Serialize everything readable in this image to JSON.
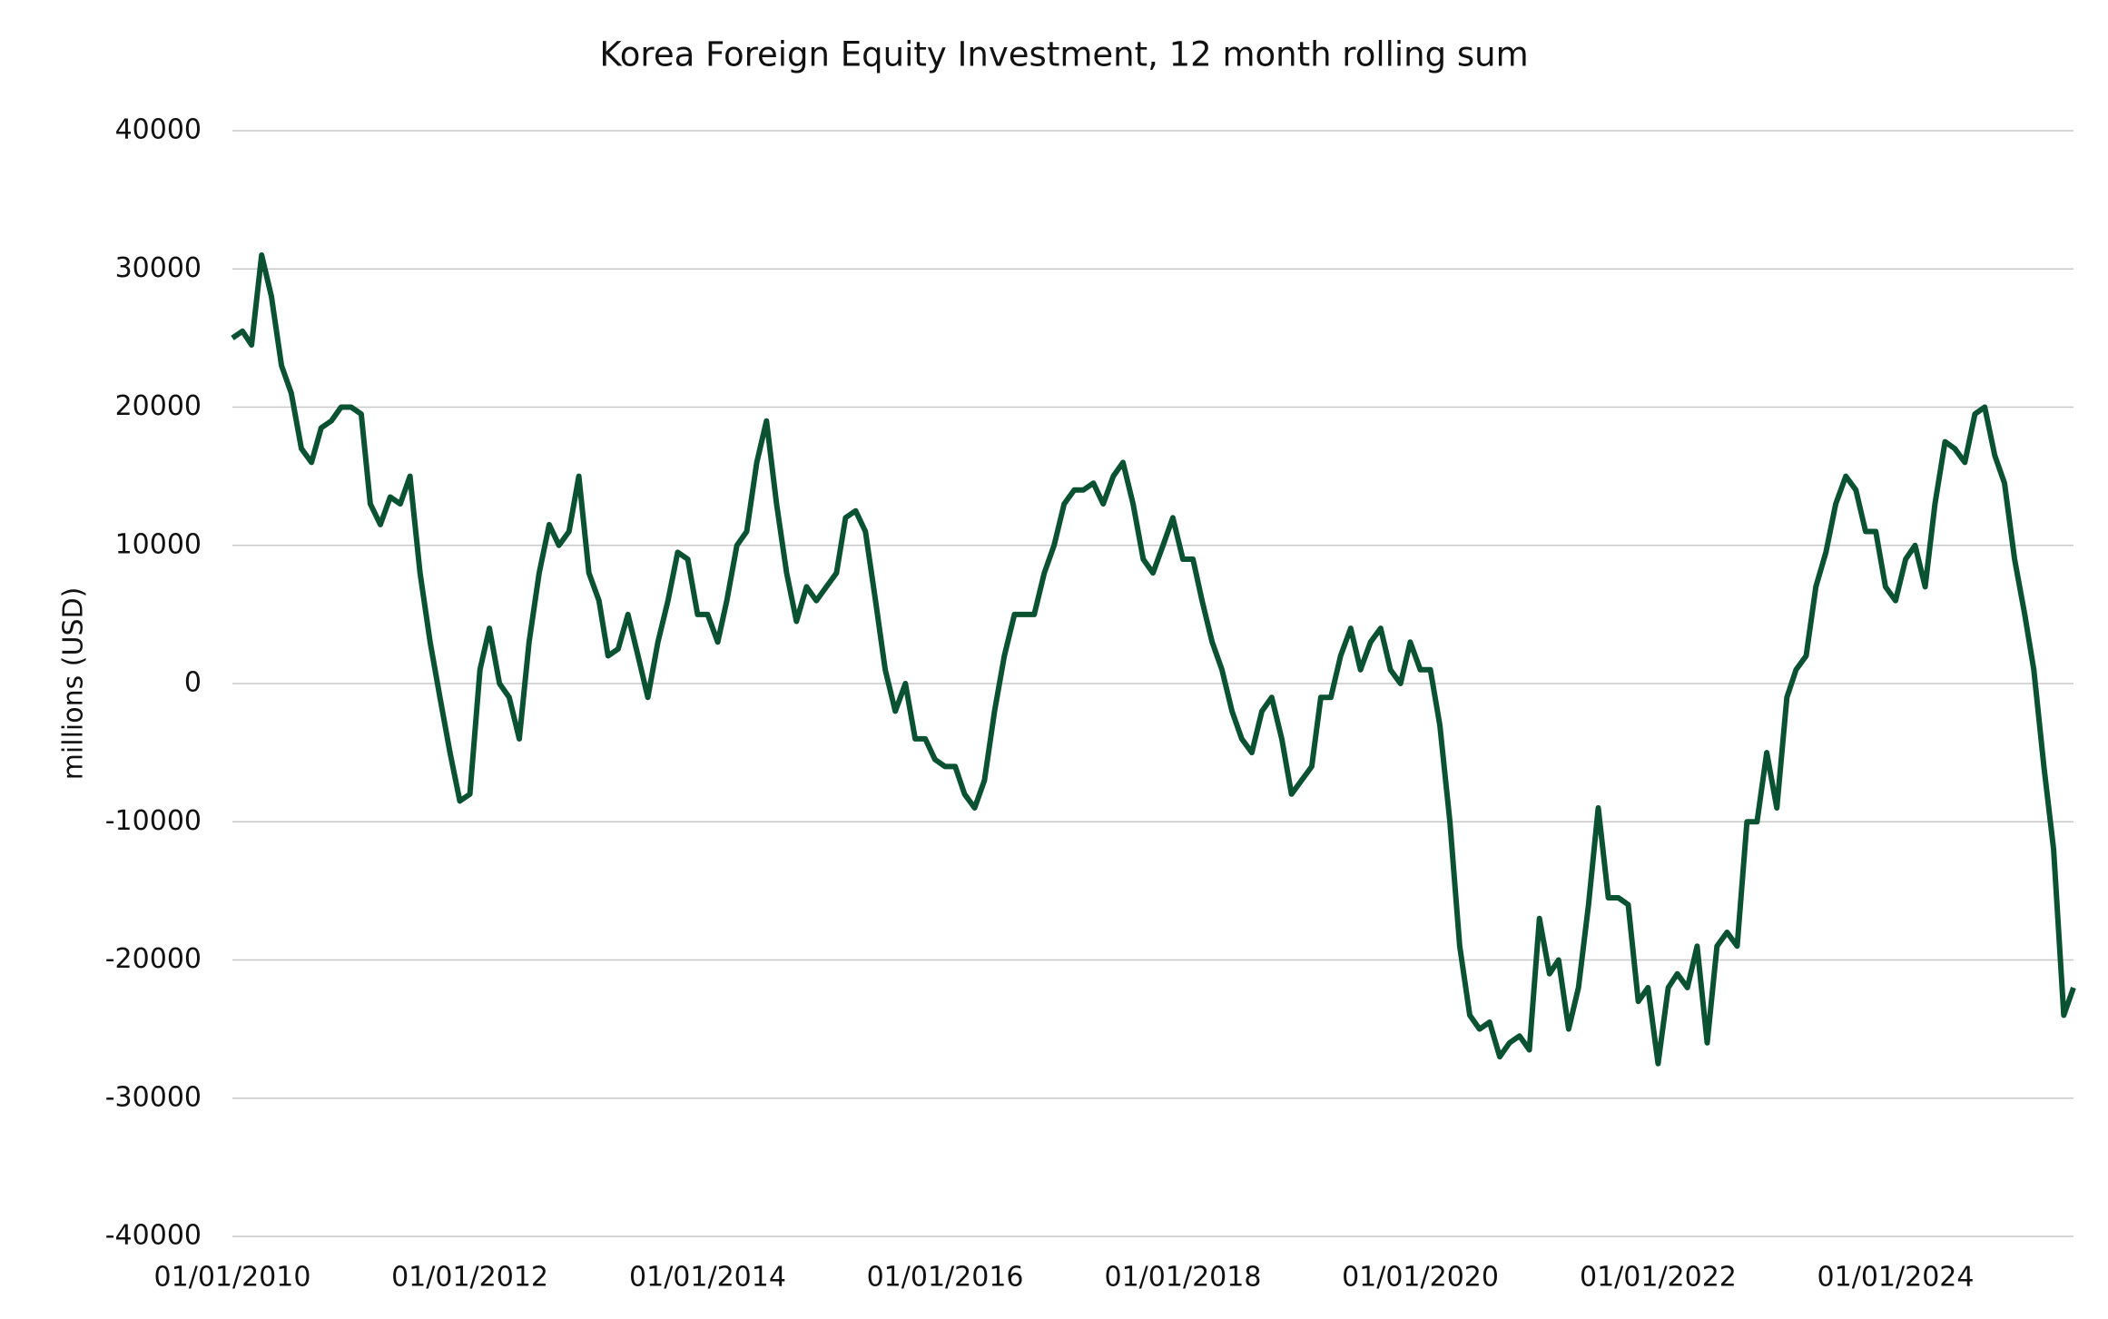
{
  "chart_data": {
    "type": "line",
    "title": "Korea Foreign Equity Investment, 12 month rolling sum",
    "y_label": "millions (USD)",
    "x": [
      "01/01/2010",
      "01/02/2010",
      "01/03/2010",
      "01/04/2010",
      "01/05/2010",
      "01/06/2010",
      "01/07/2010",
      "01/08/2010",
      "01/09/2010",
      "01/10/2010",
      "01/11/2010",
      "01/12/2010",
      "01/01/2011",
      "01/02/2011",
      "01/03/2011",
      "01/04/2011",
      "01/05/2011",
      "01/06/2011",
      "01/07/2011",
      "01/08/2011",
      "01/09/2011",
      "01/10/2011",
      "01/11/2011",
      "01/12/2011",
      "01/01/2012",
      "01/02/2012",
      "01/03/2012",
      "01/04/2012",
      "01/05/2012",
      "01/06/2012",
      "01/07/2012",
      "01/08/2012",
      "01/09/2012",
      "01/10/2012",
      "01/11/2012",
      "01/12/2012",
      "01/01/2013",
      "01/02/2013",
      "01/03/2013",
      "01/04/2013",
      "01/05/2013",
      "01/06/2013",
      "01/07/2013",
      "01/08/2013",
      "01/09/2013",
      "01/10/2013",
      "01/11/2013",
      "01/12/2013",
      "01/01/2014",
      "01/02/2014",
      "01/03/2014",
      "01/04/2014",
      "01/05/2014",
      "01/06/2014",
      "01/07/2014",
      "01/08/2014",
      "01/09/2014",
      "01/10/2014",
      "01/11/2014",
      "01/12/2014",
      "01/01/2015",
      "01/02/2015",
      "01/03/2015",
      "01/04/2015",
      "01/05/2015",
      "01/06/2015",
      "01/07/2015",
      "01/08/2015",
      "01/09/2015",
      "01/10/2015",
      "01/11/2015",
      "01/12/2015",
      "01/01/2016",
      "01/02/2016",
      "01/03/2016",
      "01/04/2016",
      "01/05/2016",
      "01/06/2016",
      "01/07/2016",
      "01/08/2016",
      "01/09/2016",
      "01/10/2016",
      "01/11/2016",
      "01/12/2016",
      "01/01/2017",
      "01/02/2017",
      "01/03/2017",
      "01/04/2017",
      "01/05/2017",
      "01/06/2017",
      "01/07/2017",
      "01/08/2017",
      "01/09/2017",
      "01/10/2017",
      "01/11/2017",
      "01/12/2017",
      "01/01/2018",
      "01/02/2018",
      "01/03/2018",
      "01/04/2018",
      "01/05/2018",
      "01/06/2018",
      "01/07/2018",
      "01/08/2018",
      "01/09/2018",
      "01/10/2018",
      "01/11/2018",
      "01/12/2018",
      "01/01/2019",
      "01/02/2019",
      "01/03/2019",
      "01/04/2019",
      "01/05/2019",
      "01/06/2019",
      "01/07/2019",
      "01/08/2019",
      "01/09/2019",
      "01/10/2019",
      "01/11/2019",
      "01/12/2019",
      "01/01/2020",
      "01/02/2020",
      "01/03/2020",
      "01/04/2020",
      "01/05/2020",
      "01/06/2020",
      "01/07/2020",
      "01/08/2020",
      "01/09/2020",
      "01/10/2020",
      "01/11/2020",
      "01/12/2020",
      "01/01/2021",
      "01/02/2021",
      "01/03/2021",
      "01/04/2021",
      "01/05/2021",
      "01/06/2021",
      "01/07/2021",
      "01/08/2021",
      "01/09/2021",
      "01/10/2021",
      "01/11/2021",
      "01/12/2021",
      "01/01/2022",
      "01/02/2022",
      "01/03/2022",
      "01/04/2022",
      "01/05/2022",
      "01/06/2022",
      "01/07/2022",
      "01/08/2022",
      "01/09/2022",
      "01/10/2022",
      "01/11/2022",
      "01/12/2022",
      "01/01/2023",
      "01/02/2023",
      "01/03/2023",
      "01/04/2023",
      "01/05/2023",
      "01/06/2023",
      "01/07/2023",
      "01/08/2023",
      "01/09/2023",
      "01/10/2023",
      "01/11/2023",
      "01/12/2023",
      "01/01/2024",
      "01/02/2024",
      "01/03/2024",
      "01/04/2024",
      "01/05/2024",
      "01/06/2024",
      "01/07/2024",
      "01/08/2024",
      "01/09/2024",
      "01/10/2024",
      "01/11/2024",
      "01/12/2024",
      "01/01/2025",
      "01/02/2025",
      "01/03/2025",
      "01/04/2025",
      "01/05/2025",
      "01/06/2025",
      "01/07/2025"
    ],
    "series": [
      {
        "name": "Korea Foreign Equity Investment",
        "color": "#0b5232",
        "values": [
          25000,
          25500,
          24500,
          31000,
          28000,
          23000,
          21000,
          17000,
          16000,
          18500,
          19000,
          20000,
          20000,
          19500,
          13000,
          11500,
          13500,
          13000,
          15000,
          8000,
          3000,
          -1000,
          -5000,
          -8500,
          -8000,
          1000,
          4000,
          0,
          -1000,
          -4000,
          3000,
          8000,
          11500,
          10000,
          11000,
          15000,
          8000,
          6000,
          2000,
          2500,
          5000,
          2000,
          -1000,
          3000,
          6000,
          9500,
          9000,
          5000,
          5000,
          3000,
          6000,
          10000,
          11000,
          16000,
          19000,
          13000,
          8000,
          4500,
          7000,
          6000,
          7000,
          8000,
          12000,
          12500,
          11000,
          6000,
          1000,
          -2000,
          0,
          -4000,
          -4000,
          -5500,
          -6000,
          -6000,
          -8000,
          -9000,
          -7000,
          -2000,
          2000,
          5000,
          5000,
          5000,
          8000,
          10000,
          13000,
          14000,
          14000,
          14500,
          13000,
          15000,
          16000,
          13000,
          9000,
          8000,
          10000,
          12000,
          9000,
          9000,
          6000,
          3000,
          1000,
          -2000,
          -4000,
          -5000,
          -2000,
          -1000,
          -4000,
          -8000,
          -7000,
          -6000,
          -1000,
          -1000,
          2000,
          4000,
          1000,
          3000,
          4000,
          1000,
          0,
          3000,
          1000,
          1000,
          -3000,
          -10000,
          -19000,
          -24000,
          -25000,
          -24500,
          -27000,
          -26000,
          -25500,
          -26500,
          -17000,
          -21000,
          -20000,
          -25000,
          -22000,
          -16000,
          -9000,
          -15500,
          -15500,
          -16000,
          -23000,
          -22000,
          -27500,
          -22000,
          -21000,
          -22000,
          -19000,
          -26000,
          -19000,
          -18000,
          -19000,
          -10000,
          -10000,
          -5000,
          -9000,
          -1000,
          1000,
          2000,
          7000,
          9500,
          13000,
          15000,
          14000,
          11000,
          11000,
          7000,
          6000,
          9000,
          10000,
          7000,
          13000,
          17500,
          17000,
          16000,
          19500,
          20000,
          16500,
          14500,
          9000,
          5000,
          1000,
          -6000,
          -12000,
          -24000,
          -22000
        ]
      }
    ],
    "xlim": [
      "01/01/2010",
      "01/07/2025"
    ],
    "xticks": [
      "01/01/2010",
      "01/01/2012",
      "01/01/2014",
      "01/01/2016",
      "01/01/2018",
      "01/01/2020",
      "01/01/2022",
      "01/01/2024"
    ],
    "ylim": [
      -40000,
      40000
    ],
    "yticks": [
      -40000,
      -30000,
      -20000,
      -10000,
      0,
      10000,
      20000,
      30000,
      40000
    ],
    "grid": true
  }
}
